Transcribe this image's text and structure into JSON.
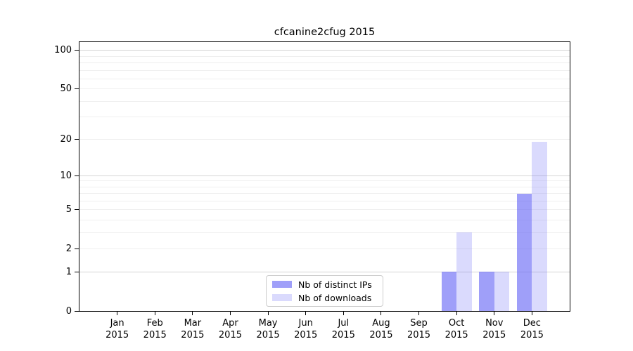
{
  "chart_data": {
    "type": "bar",
    "title": "cfcanine2cfug 2015",
    "x_categories": [
      "Jan",
      "Feb",
      "Mar",
      "Apr",
      "May",
      "Jun",
      "Jul",
      "Aug",
      "Sep",
      "Oct",
      "Nov",
      "Dec"
    ],
    "x_year_label": "2015",
    "series": [
      {
        "name": "Nb of distinct IPs",
        "color": "rgba(100,100,245,0.62)",
        "values": [
          0,
          0,
          0,
          0,
          0,
          0,
          0,
          0,
          0,
          1,
          1,
          7
        ]
      },
      {
        "name": "Nb of downloads",
        "color": "rgba(100,100,245,0.24)",
        "values": [
          0,
          0,
          0,
          0,
          0,
          0,
          0,
          0,
          0,
          3,
          1,
          19
        ]
      }
    ],
    "y_axis": {
      "scale": "log10(1+y)",
      "tick_labels": [
        0,
        1,
        2,
        5,
        10,
        20,
        50,
        100
      ],
      "major_gridlines": [
        1,
        10,
        100
      ],
      "minor_gridlines": [
        2,
        3,
        4,
        5,
        6,
        7,
        8,
        9,
        20,
        30,
        40,
        50,
        60,
        70,
        80,
        90
      ],
      "range": [
        0,
        116
      ]
    },
    "legend": {
      "position": "bottom-center",
      "entries": [
        "Nb of distinct IPs",
        "Nb of downloads"
      ]
    },
    "grid": true
  },
  "colors": {
    "background": "#ffffff",
    "spine": "#000000",
    "grid_major": "#d4d4d4",
    "grid_minor": "#efefef",
    "text": "#000000",
    "legend_border": "#cccccc"
  }
}
